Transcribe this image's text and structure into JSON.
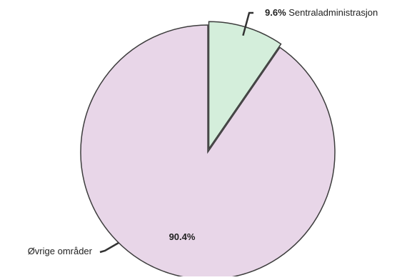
{
  "chart_data": {
    "type": "pie",
    "title": "",
    "categories": [
      "Sentraladministrasjon",
      "Øvrige områder"
    ],
    "values": [
      9.6,
      90.4
    ],
    "labels": [
      {
        "percent": "9.6%",
        "name": "Sentraladministrasjon"
      },
      {
        "percent": "90.4%",
        "name": "Øvrige områder"
      }
    ],
    "colors": [
      "#d4eedb",
      "#e8d6e8"
    ],
    "exploded_slice": "Sentraladministrasjon",
    "legend": "none"
  }
}
